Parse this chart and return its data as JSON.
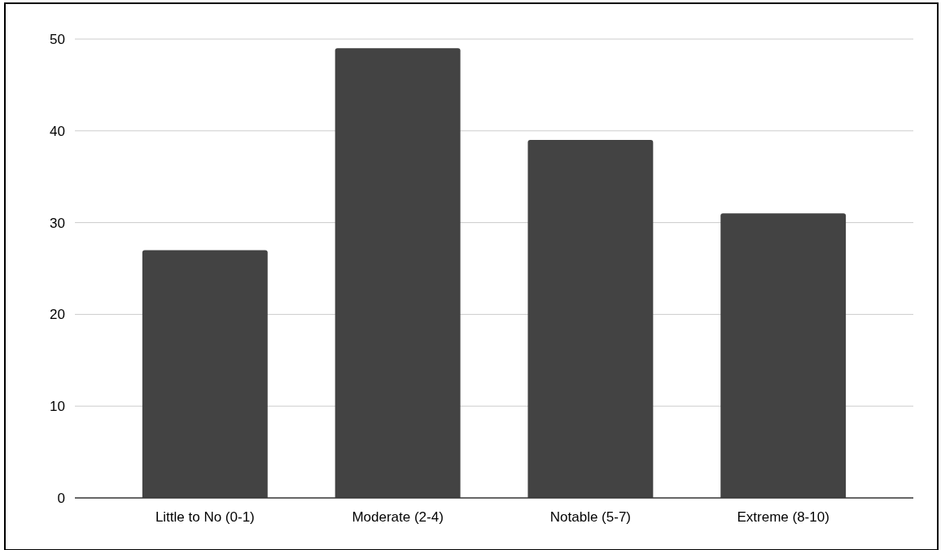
{
  "chart_data": {
    "type": "bar",
    "categories": [
      "Little to No (0-1)",
      "Moderate (2-4)",
      "Notable (5-7)",
      "Extreme (8-10)"
    ],
    "values": [
      27,
      49,
      39,
      31
    ],
    "color": "#434343",
    "ylim": [
      0,
      50
    ],
    "yticks": [
      0,
      10,
      20,
      30,
      40,
      50
    ],
    "grid": "y"
  }
}
